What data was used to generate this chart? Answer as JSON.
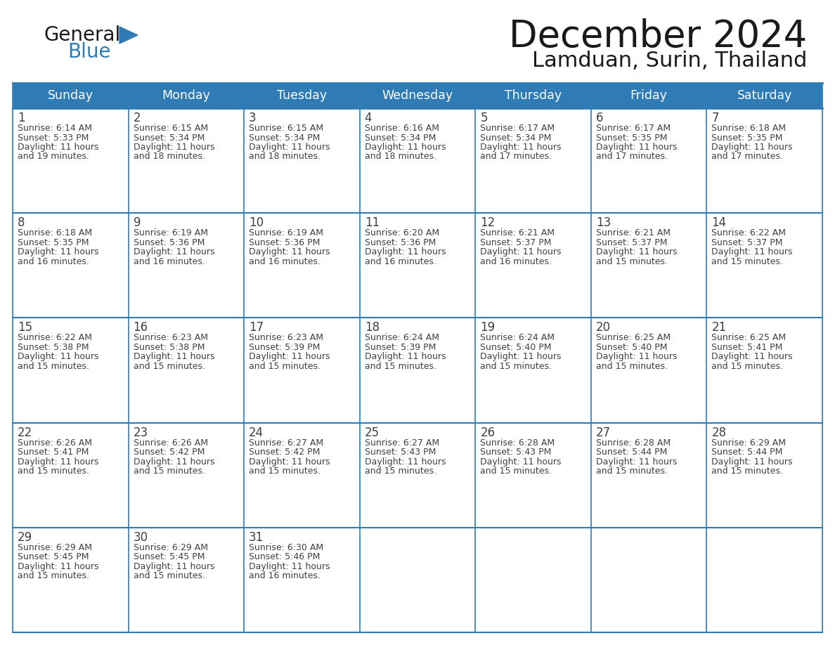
{
  "title": "December 2024",
  "subtitle": "Lamduan, Surin, Thailand",
  "header_color": "#2E7BB5",
  "header_text_color": "#FFFFFF",
  "cell_bg_color": "#FFFFFF",
  "border_color": "#2E7BB5",
  "text_color": "#404040",
  "days_of_week": [
    "Sunday",
    "Monday",
    "Tuesday",
    "Wednesday",
    "Thursday",
    "Friday",
    "Saturday"
  ],
  "calendar_data": [
    [
      {
        "day": "1",
        "sunrise": "6:14 AM",
        "sunset": "5:33 PM",
        "daylight_h": "11 hours",
        "daylight_m": "and 19 minutes."
      },
      {
        "day": "2",
        "sunrise": "6:15 AM",
        "sunset": "5:34 PM",
        "daylight_h": "11 hours",
        "daylight_m": "and 18 minutes."
      },
      {
        "day": "3",
        "sunrise": "6:15 AM",
        "sunset": "5:34 PM",
        "daylight_h": "11 hours",
        "daylight_m": "and 18 minutes."
      },
      {
        "day": "4",
        "sunrise": "6:16 AM",
        "sunset": "5:34 PM",
        "daylight_h": "11 hours",
        "daylight_m": "and 18 minutes."
      },
      {
        "day": "5",
        "sunrise": "6:17 AM",
        "sunset": "5:34 PM",
        "daylight_h": "11 hours",
        "daylight_m": "and 17 minutes."
      },
      {
        "day": "6",
        "sunrise": "6:17 AM",
        "sunset": "5:35 PM",
        "daylight_h": "11 hours",
        "daylight_m": "and 17 minutes."
      },
      {
        "day": "7",
        "sunrise": "6:18 AM",
        "sunset": "5:35 PM",
        "daylight_h": "11 hours",
        "daylight_m": "and 17 minutes."
      }
    ],
    [
      {
        "day": "8",
        "sunrise": "6:18 AM",
        "sunset": "5:35 PM",
        "daylight_h": "11 hours",
        "daylight_m": "and 16 minutes."
      },
      {
        "day": "9",
        "sunrise": "6:19 AM",
        "sunset": "5:36 PM",
        "daylight_h": "11 hours",
        "daylight_m": "and 16 minutes."
      },
      {
        "day": "10",
        "sunrise": "6:19 AM",
        "sunset": "5:36 PM",
        "daylight_h": "11 hours",
        "daylight_m": "and 16 minutes."
      },
      {
        "day": "11",
        "sunrise": "6:20 AM",
        "sunset": "5:36 PM",
        "daylight_h": "11 hours",
        "daylight_m": "and 16 minutes."
      },
      {
        "day": "12",
        "sunrise": "6:21 AM",
        "sunset": "5:37 PM",
        "daylight_h": "11 hours",
        "daylight_m": "and 16 minutes."
      },
      {
        "day": "13",
        "sunrise": "6:21 AM",
        "sunset": "5:37 PM",
        "daylight_h": "11 hours",
        "daylight_m": "and 15 minutes."
      },
      {
        "day": "14",
        "sunrise": "6:22 AM",
        "sunset": "5:37 PM",
        "daylight_h": "11 hours",
        "daylight_m": "and 15 minutes."
      }
    ],
    [
      {
        "day": "15",
        "sunrise": "6:22 AM",
        "sunset": "5:38 PM",
        "daylight_h": "11 hours",
        "daylight_m": "and 15 minutes."
      },
      {
        "day": "16",
        "sunrise": "6:23 AM",
        "sunset": "5:38 PM",
        "daylight_h": "11 hours",
        "daylight_m": "and 15 minutes."
      },
      {
        "day": "17",
        "sunrise": "6:23 AM",
        "sunset": "5:39 PM",
        "daylight_h": "11 hours",
        "daylight_m": "and 15 minutes."
      },
      {
        "day": "18",
        "sunrise": "6:24 AM",
        "sunset": "5:39 PM",
        "daylight_h": "11 hours",
        "daylight_m": "and 15 minutes."
      },
      {
        "day": "19",
        "sunrise": "6:24 AM",
        "sunset": "5:40 PM",
        "daylight_h": "11 hours",
        "daylight_m": "and 15 minutes."
      },
      {
        "day": "20",
        "sunrise": "6:25 AM",
        "sunset": "5:40 PM",
        "daylight_h": "11 hours",
        "daylight_m": "and 15 minutes."
      },
      {
        "day": "21",
        "sunrise": "6:25 AM",
        "sunset": "5:41 PM",
        "daylight_h": "11 hours",
        "daylight_m": "and 15 minutes."
      }
    ],
    [
      {
        "day": "22",
        "sunrise": "6:26 AM",
        "sunset": "5:41 PM",
        "daylight_h": "11 hours",
        "daylight_m": "and 15 minutes."
      },
      {
        "day": "23",
        "sunrise": "6:26 AM",
        "sunset": "5:42 PM",
        "daylight_h": "11 hours",
        "daylight_m": "and 15 minutes."
      },
      {
        "day": "24",
        "sunrise": "6:27 AM",
        "sunset": "5:42 PM",
        "daylight_h": "11 hours",
        "daylight_m": "and 15 minutes."
      },
      {
        "day": "25",
        "sunrise": "6:27 AM",
        "sunset": "5:43 PM",
        "daylight_h": "11 hours",
        "daylight_m": "and 15 minutes."
      },
      {
        "day": "26",
        "sunrise": "6:28 AM",
        "sunset": "5:43 PM",
        "daylight_h": "11 hours",
        "daylight_m": "and 15 minutes."
      },
      {
        "day": "27",
        "sunrise": "6:28 AM",
        "sunset": "5:44 PM",
        "daylight_h": "11 hours",
        "daylight_m": "and 15 minutes."
      },
      {
        "day": "28",
        "sunrise": "6:29 AM",
        "sunset": "5:44 PM",
        "daylight_h": "11 hours",
        "daylight_m": "and 15 minutes."
      }
    ],
    [
      {
        "day": "29",
        "sunrise": "6:29 AM",
        "sunset": "5:45 PM",
        "daylight_h": "11 hours",
        "daylight_m": "and 15 minutes."
      },
      {
        "day": "30",
        "sunrise": "6:29 AM",
        "sunset": "5:45 PM",
        "daylight_h": "11 hours",
        "daylight_m": "and 15 minutes."
      },
      {
        "day": "31",
        "sunrise": "6:30 AM",
        "sunset": "5:46 PM",
        "daylight_h": "11 hours",
        "daylight_m": "and 16 minutes."
      },
      null,
      null,
      null,
      null
    ]
  ]
}
